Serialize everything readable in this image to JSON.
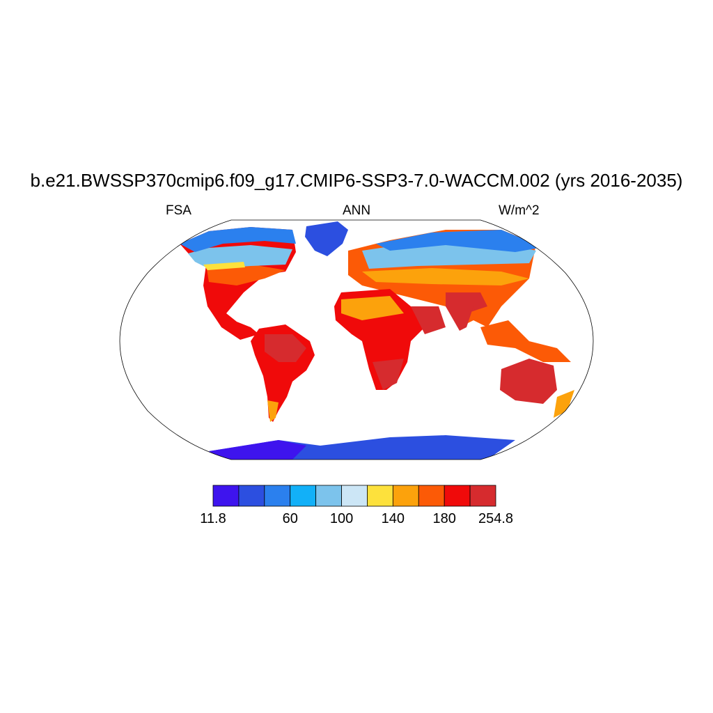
{
  "title": "b.e21.BWSSP370cmip6.f09_g17.CMIP6-SSP3-7.0-WACCM.002 (yrs 2016-2035)",
  "subtitle_left": "FSA",
  "subtitle_center": "ANN",
  "subtitle_right": "W/m^2",
  "colorbar": {
    "colors": [
      "#3e14ee",
      "#2c4fe0",
      "#2b80ee",
      "#12b0f8",
      "#7cc3ec",
      "#cce6f6",
      "#fde13c",
      "#fca20c",
      "#fc5a06",
      "#f00a0a",
      "#d62b2e"
    ],
    "labels": [
      {
        "text": "11.8",
        "index": 0
      },
      {
        "text": "60",
        "index": 3
      },
      {
        "text": "100",
        "index": 5
      },
      {
        "text": "140",
        "index": 7
      },
      {
        "text": "180",
        "index": 9
      },
      {
        "text": "254.8",
        "index": 11
      }
    ]
  }
}
